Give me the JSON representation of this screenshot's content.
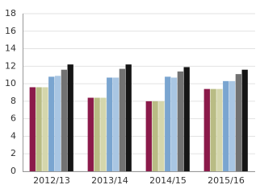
{
  "chart_data": {
    "type": "bar",
    "categories": [
      "2012/13",
      "2013/14",
      "2014/15",
      "2015/16"
    ],
    "series": [
      {
        "color": "#8b1a4a",
        "values": [
          9.6,
          8.4,
          8.0,
          9.4
        ]
      },
      {
        "color": "#b9bc84",
        "values": [
          9.6,
          8.4,
          8.0,
          9.4
        ]
      },
      {
        "color": "#d4d6ac",
        "values": [
          9.6,
          8.4,
          8.0,
          9.4
        ]
      },
      {
        "color": "#7aa5d0",
        "values": [
          10.8,
          10.7,
          10.8,
          10.3
        ]
      },
      {
        "color": "#a9c6e3",
        "values": [
          10.9,
          10.7,
          10.7,
          10.3
        ]
      },
      {
        "color": "#727272",
        "values": [
          11.6,
          11.7,
          11.4,
          11.1
        ]
      },
      {
        "color": "#151515",
        "values": [
          12.2,
          12.2,
          11.9,
          11.6
        ]
      }
    ],
    "ylim": [
      0,
      18
    ],
    "yticks": [
      0,
      2,
      4,
      6,
      8,
      10,
      12,
      14,
      16,
      18
    ],
    "grid": true
  }
}
